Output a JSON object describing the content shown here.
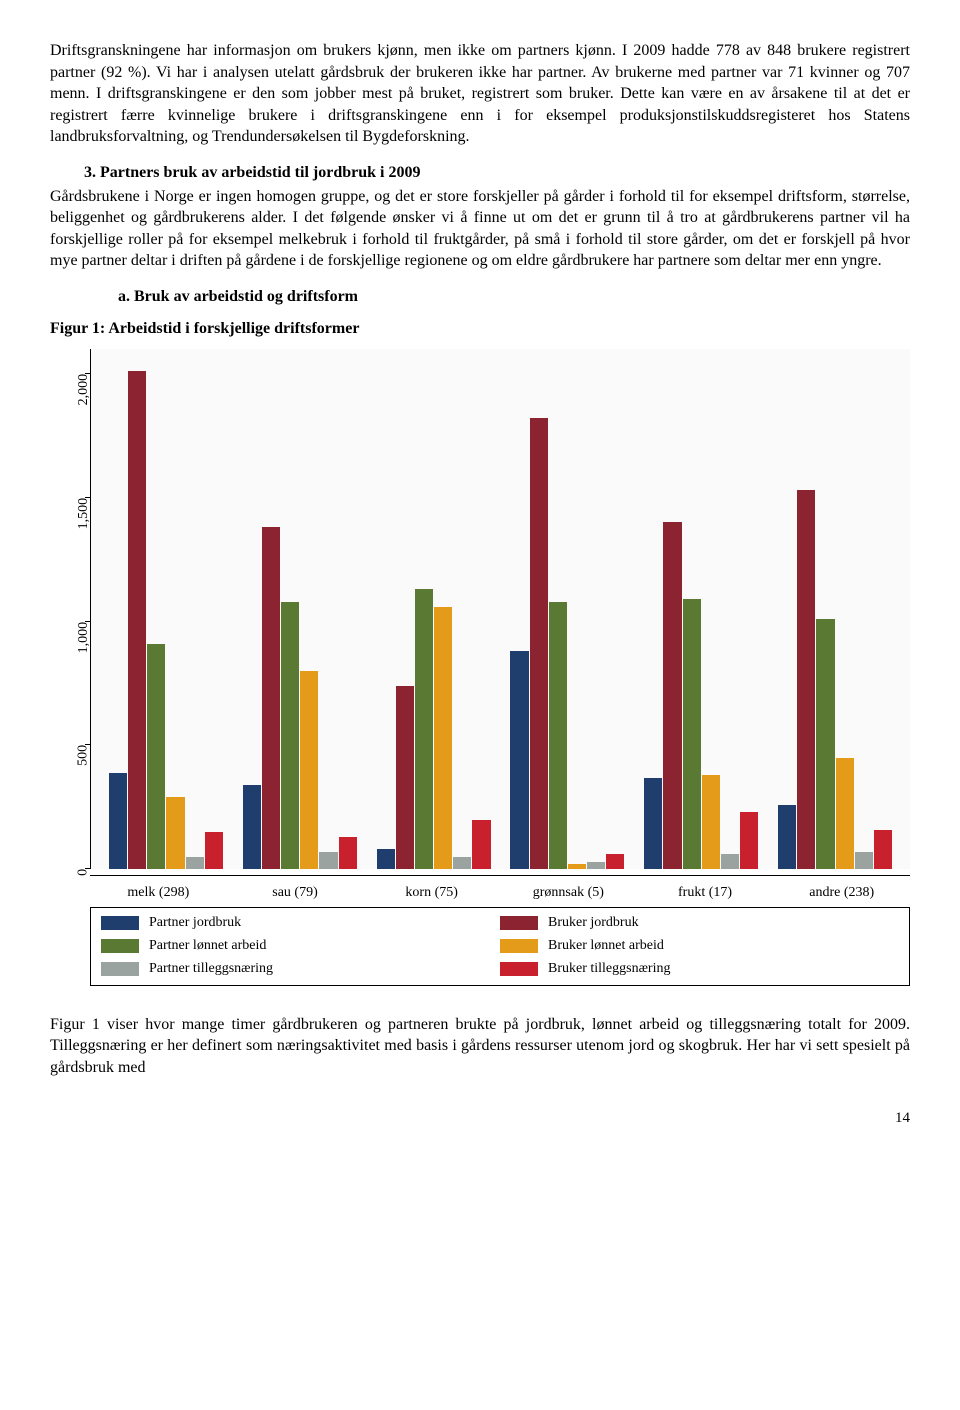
{
  "text": {
    "para1": "Driftsgranskningene har informasjon om brukers kjønn, men ikke om partners kjønn. I 2009 hadde 778 av 848 brukere registrert partner (92 %). Vi har i analysen utelatt gårdsbruk der brukeren ikke har partner. Av brukerne med partner var 71 kvinner og 707 menn. I driftsgranskingene er den som jobber mest på bruket, registrert som bruker. Dette kan være en av årsakene til at det er registrert færre kvinnelige brukere i driftsgranskingene enn i for eksempel produksjonstilskuddsregisteret hos Statens landbruksforvaltning, og Trendundersøkelsen til Bygdeforskning.",
    "heading3": "3. Partners bruk av arbeidstid til jordbruk i 2009",
    "para2": "Gårdsbrukene i Norge er ingen homogen gruppe, og det er store forskjeller på gårder i forhold til for eksempel driftsform, størrelse, beliggenhet og gårdbrukerens alder. I det følgende ønsker vi å finne ut om det er grunn til å tro at gårdbrukerens partner vil ha forskjellige roller på for eksempel melkebruk i forhold til fruktgårder, på små i forhold til store gårder, om det er forskjell på hvor mye partner deltar i driften på gårdene i de forskjellige regionene og om eldre gårdbrukere har partnere som deltar mer enn yngre.",
    "subheading_a": "a. Bruk av arbeidstid og driftsform",
    "fig_caption": "Figur 1: Arbeidstid i forskjellige driftsformer",
    "para3": "Figur 1 viser hvor mange timer gårdbrukeren og partneren brukte på jordbruk, lønnet arbeid og tilleggsnæring totalt for 2009. Tilleggsnæring er her definert som næringsaktivitet med basis i gårdens ressurser utenom jord og skogbruk. Her har vi sett spesielt på gårdsbruk med",
    "page_num": "14"
  },
  "chart": {
    "type": "bar",
    "background_color": "#fafafa",
    "axis_color": "#000000",
    "ylim_max": 2100,
    "yticks": [
      {
        "value": 0,
        "label": "0"
      },
      {
        "value": 500,
        "label": "500"
      },
      {
        "value": 1000,
        "label": "1,000"
      },
      {
        "value": 1500,
        "label": "1,500"
      },
      {
        "value": 2000,
        "label": "2,000"
      }
    ],
    "series": [
      {
        "key": "partner_jordbruk",
        "label": "Partner jordbruk",
        "color": "#1f3e6e"
      },
      {
        "key": "bruker_jordbruk",
        "label": "Bruker jordbruk",
        "color": "#8b2331"
      },
      {
        "key": "partner_lonnet",
        "label": "Partner lønnet arbeid",
        "color": "#5a7a33"
      },
      {
        "key": "bruker_lonnet",
        "label": "Bruker lønnet arbeid",
        "color": "#e49b1a"
      },
      {
        "key": "partner_tillegg",
        "label": "Partner tilleggsnæring",
        "color": "#9aa3a0"
      },
      {
        "key": "bruker_tillegg",
        "label": "Bruker tilleggsnæring",
        "color": "#c9202e"
      }
    ],
    "categories": [
      {
        "label": "melk (298)",
        "values": {
          "partner_jordbruk": 390,
          "bruker_jordbruk": 2010,
          "partner_lonnet": 910,
          "bruker_lonnet": 290,
          "partner_tillegg": 50,
          "bruker_tillegg": 150
        }
      },
      {
        "label": "sau (79)",
        "values": {
          "partner_jordbruk": 340,
          "bruker_jordbruk": 1380,
          "partner_lonnet": 1080,
          "bruker_lonnet": 800,
          "partner_tillegg": 70,
          "bruker_tillegg": 130
        }
      },
      {
        "label": "korn (75)",
        "values": {
          "partner_jordbruk": 80,
          "bruker_jordbruk": 740,
          "partner_lonnet": 1130,
          "bruker_lonnet": 1060,
          "partner_tillegg": 50,
          "bruker_tillegg": 200
        }
      },
      {
        "label": "grønnsak (5)",
        "values": {
          "partner_jordbruk": 880,
          "bruker_jordbruk": 1820,
          "partner_lonnet": 1080,
          "bruker_lonnet": 20,
          "partner_tillegg": 30,
          "bruker_tillegg": 60
        }
      },
      {
        "label": "frukt (17)",
        "values": {
          "partner_jordbruk": 370,
          "bruker_jordbruk": 1400,
          "partner_lonnet": 1090,
          "bruker_lonnet": 380,
          "partner_tillegg": 60,
          "bruker_tillegg": 230
        }
      },
      {
        "label": "andre (238)",
        "values": {
          "partner_jordbruk": 260,
          "bruker_jordbruk": 1530,
          "partner_lonnet": 1010,
          "bruker_lonnet": 450,
          "partner_tillegg": 70,
          "bruker_tillegg": 160
        }
      }
    ]
  }
}
